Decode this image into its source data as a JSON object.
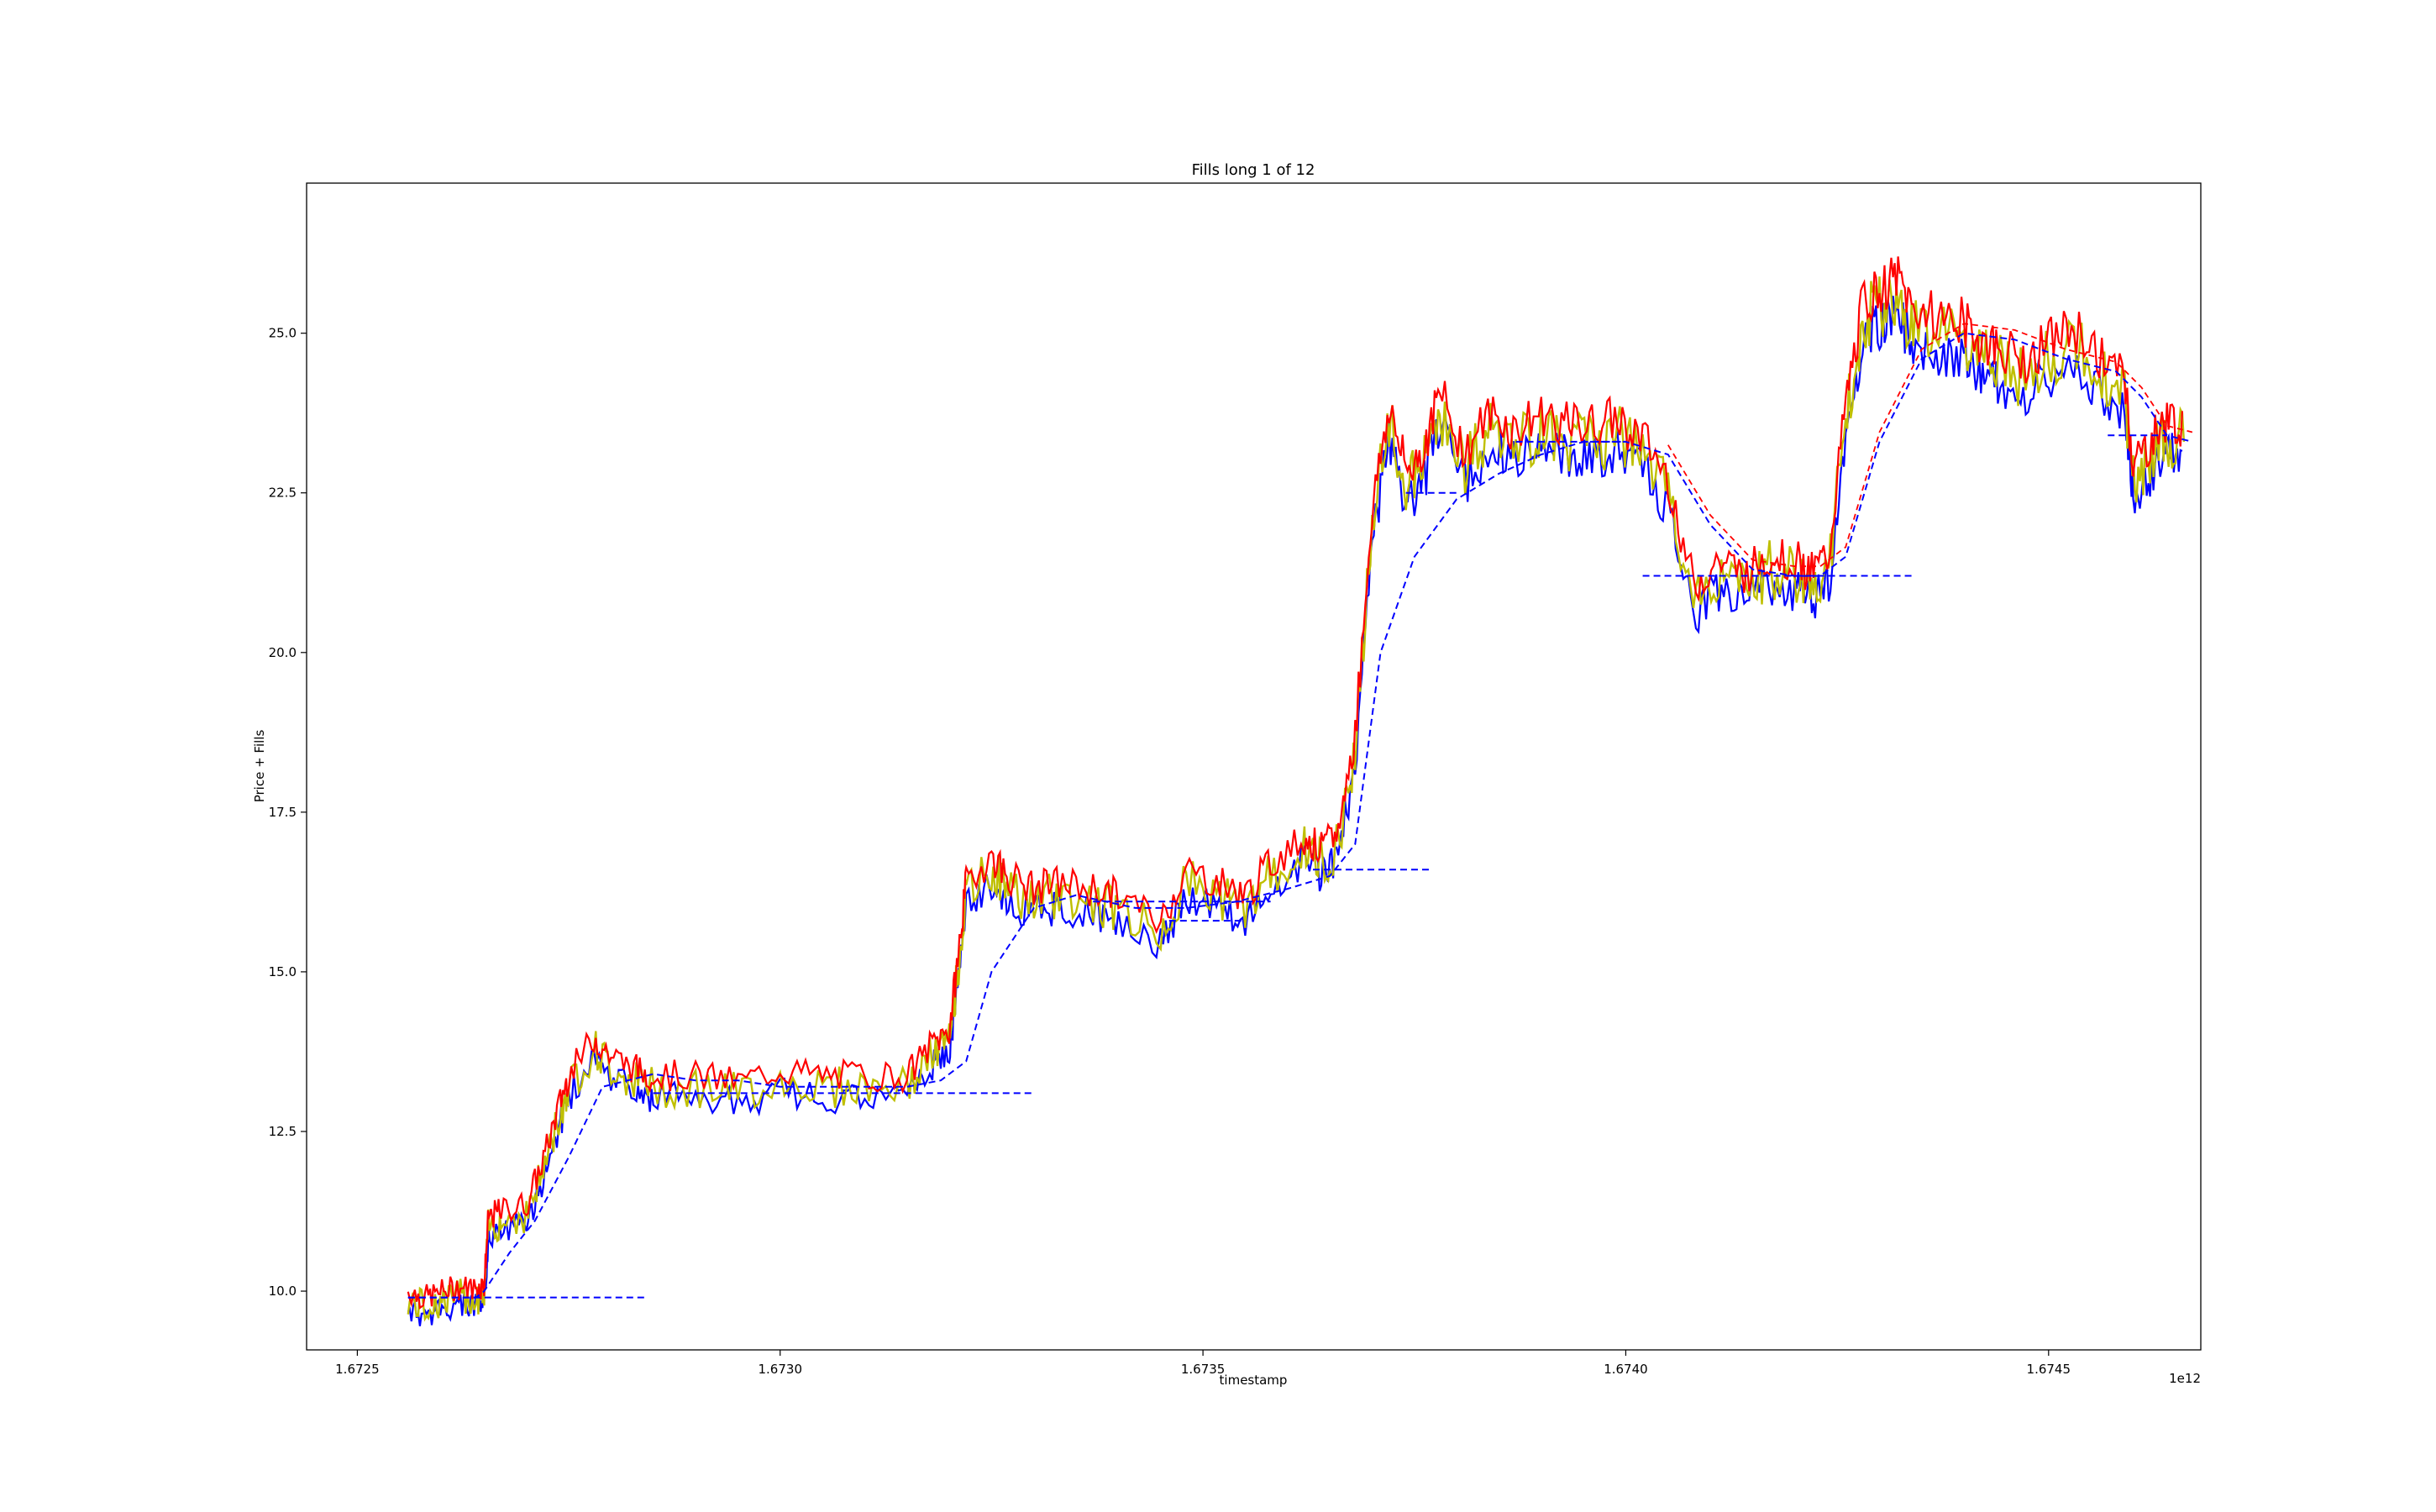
{
  "chart_data": {
    "type": "line",
    "title": "Fills long 1 of 12",
    "xlabel": "timestamp",
    "ylabel": "Price + Fills",
    "x_offset_label": "1e12",
    "xlim": [
      1.67244,
      1.67468
    ],
    "ylim": [
      9.08,
      27.35
    ],
    "xticks": [
      1.6725,
      1.673,
      1.6735,
      1.674,
      1.6745
    ],
    "xtick_labels": [
      "1.6725",
      "1.6730",
      "1.6735",
      "1.6740",
      "1.6745"
    ],
    "yticks": [
      10.0,
      12.5,
      15.0,
      17.5,
      20.0,
      22.5,
      25.0
    ],
    "ytick_labels": [
      "10.0",
      "12.5",
      "15.0",
      "17.5",
      "20.0",
      "22.5",
      "25.0"
    ],
    "grid": false,
    "colors": {
      "price": "#bfbf00",
      "sell_fills": "#ff0000",
      "buy_fills": "#0000ff",
      "break_even": "#0000ff",
      "sell_target": "#ff0000"
    },
    "series": [
      {
        "style": "solid",
        "x": [
          1.67256,
          1.67258,
          1.6726,
          1.67262,
          1.67264,
          1.67265,
          1.672655,
          1.67267,
          1.6727,
          1.67272,
          1.67274,
          1.67275,
          1.67278,
          1.6728,
          1.67283,
          1.67285,
          1.6729,
          1.67295,
          1.673,
          1.67305,
          1.6731,
          1.67315,
          1.67318,
          1.6732,
          1.67321,
          1.67322,
          1.67325,
          1.67327,
          1.6733,
          1.67333,
          1.67337,
          1.6734,
          1.67345,
          1.67348,
          1.67352,
          1.67355,
          1.67358,
          1.67362,
          1.67364,
          1.67366,
          1.67368,
          1.6737,
          1.67372,
          1.67374,
          1.67376,
          1.67378,
          1.67381,
          1.67384,
          1.67387,
          1.6739,
          1.67393,
          1.67396,
          1.67399,
          1.67402,
          1.67405,
          1.67408,
          1.67411,
          1.67414,
          1.67417,
          1.6742,
          1.67422,
          1.67424,
          1.67426,
          1.67428,
          1.6743,
          1.67432,
          1.67434,
          1.67437,
          1.6744,
          1.67442,
          1.67444,
          1.67447,
          1.6745,
          1.67453,
          1.67456,
          1.67459,
          1.6746,
          1.67462,
          1.67464,
          1.67466
        ],
        "values": [
          9.85,
          9.75,
          9.85,
          9.92,
          9.9,
          9.95,
          11.0,
          11.1,
          11.2,
          11.9,
          12.8,
          13.2,
          13.8,
          13.5,
          13.3,
          13.2,
          13.2,
          13.1,
          13.3,
          13.2,
          13.2,
          13.2,
          13.7,
          13.9,
          15.0,
          16.2,
          16.6,
          16.3,
          16.1,
          16.2,
          16.1,
          16.0,
          15.6,
          16.4,
          16.2,
          16.0,
          16.5,
          16.9,
          16.7,
          17.0,
          18.5,
          22.0,
          23.6,
          22.6,
          22.9,
          23.8,
          22.9,
          23.5,
          23.2,
          23.5,
          23.3,
          23.3,
          23.4,
          23.1,
          22.5,
          20.8,
          21.2,
          21.0,
          21.3,
          21.2,
          21.0,
          21.3,
          23.6,
          25.2,
          25.4,
          25.6,
          25.1,
          25.0,
          24.9,
          24.6,
          24.5,
          24.3,
          24.6,
          24.8,
          24.4,
          24.0,
          22.7,
          23.0,
          23.4,
          23.3
        ]
      },
      {
        "style": "dashed",
        "x": [
          1.67256,
          1.67264,
          1.67265,
          1.67268,
          1.67271,
          1.67275,
          1.67279,
          1.67285,
          1.6729,
          1.67295,
          1.673,
          1.67305,
          1.6731,
          1.67315,
          1.67319,
          1.67322,
          1.67325,
          1.6733,
          1.67335,
          1.67342,
          1.67348,
          1.67354,
          1.6736,
          1.67365,
          1.67368,
          1.67371,
          1.67375,
          1.6738,
          1.67385,
          1.6739,
          1.67395,
          1.674,
          1.67405,
          1.6741,
          1.67415,
          1.6742,
          1.67423,
          1.67426,
          1.6743,
          1.67435,
          1.6744,
          1.67446,
          1.67452,
          1.67458,
          1.67461,
          1.67464,
          1.67467
        ],
        "values": [
          9.9,
          9.9,
          10.0,
          10.6,
          11.1,
          12.1,
          13.2,
          13.4,
          13.3,
          13.3,
          13.2,
          13.2,
          13.2,
          13.2,
          13.3,
          13.6,
          15.0,
          16.0,
          16.2,
          16.0,
          16.0,
          16.1,
          16.3,
          16.5,
          17.0,
          20.0,
          21.5,
          22.4,
          22.8,
          23.1,
          23.3,
          23.3,
          23.1,
          22.0,
          21.3,
          21.2,
          21.2,
          21.5,
          23.3,
          24.6,
          25.0,
          24.9,
          24.6,
          24.4,
          24.0,
          23.4,
          23.3
        ]
      }
    ]
  }
}
